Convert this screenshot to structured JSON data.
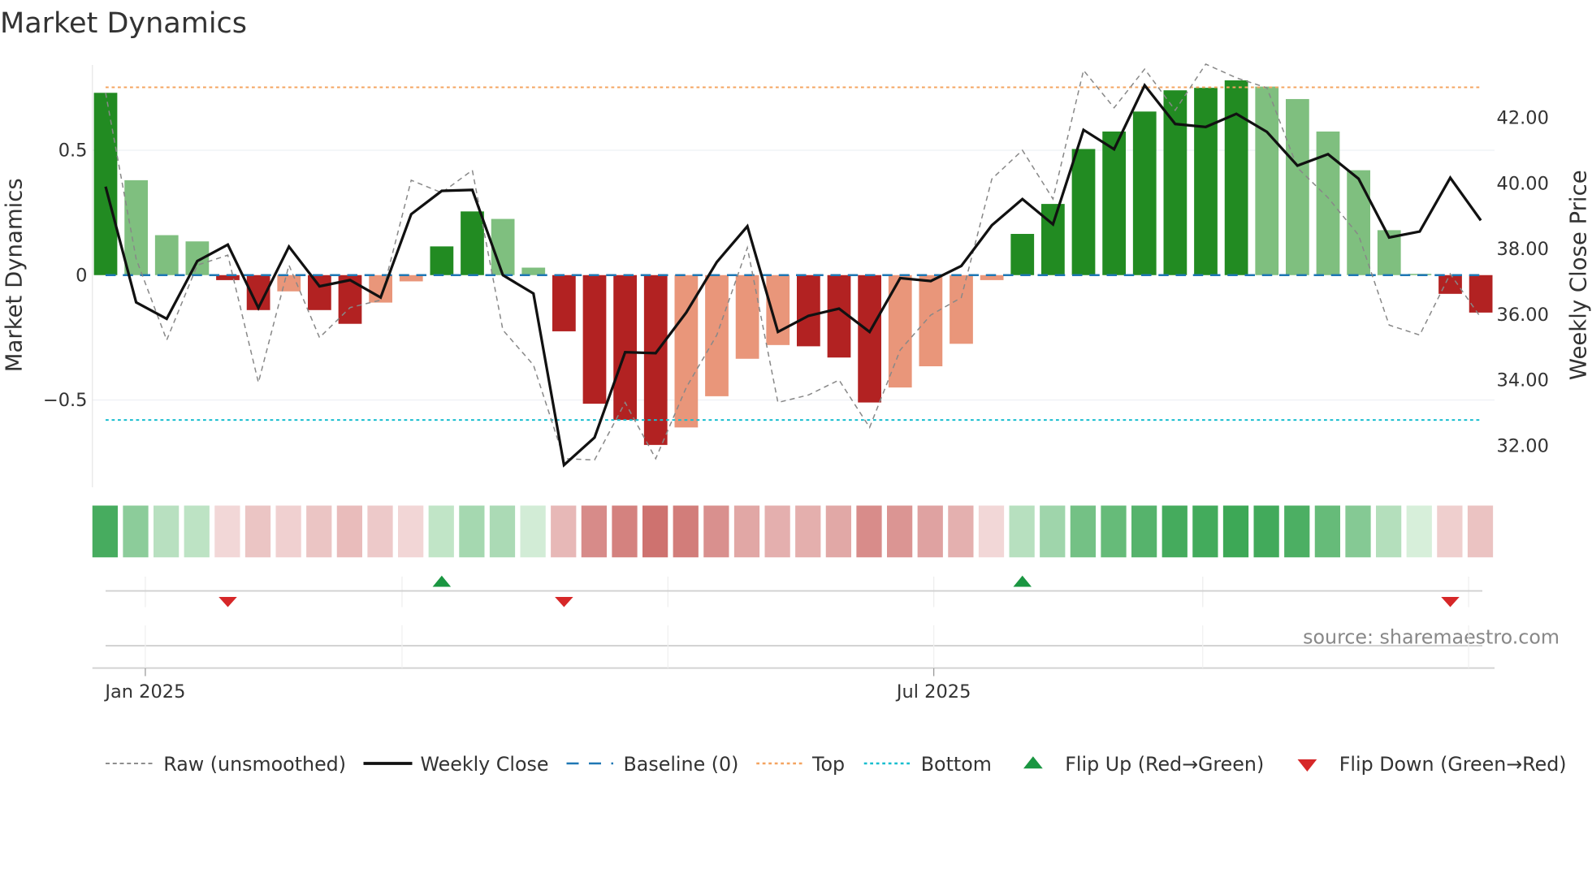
{
  "chart_data": {
    "type": "bar",
    "title": "Market Dynamics",
    "ylabel": "Market Dynamics",
    "y2label": "Weekly Close Price",
    "ylim": [
      -0.85,
      0.85
    ],
    "y2lim": [
      31.0,
      43.5
    ],
    "yticks": [
      "0.5",
      "0",
      "−0.5"
    ],
    "yticks_values": [
      0.5,
      0,
      -0.5
    ],
    "y2ticks": [
      "42.00",
      "40.00",
      "38.00",
      "36.00",
      "34.00",
      "32.00"
    ],
    "y2ticks_values": [
      42,
      40,
      38,
      36,
      34,
      32
    ],
    "xticks": [
      "Jan 2025",
      "Jul 2025"
    ],
    "xticks_index": [
      1.3,
      27.1
    ],
    "month_grid_index": [
      1.3,
      9.7,
      18.4,
      27.1,
      35.9,
      44.6
    ],
    "grid": true,
    "top_level": 0.752,
    "bottom_level": -0.58,
    "baseline": 0,
    "momentum": [
      0.73,
      0.38,
      0.16,
      0.135,
      -0.02,
      -0.14,
      -0.065,
      -0.14,
      -0.195,
      -0.11,
      -0.025,
      0.115,
      0.255,
      0.225,
      0.03,
      -0.225,
      -0.515,
      -0.58,
      -0.68,
      -0.61,
      -0.485,
      -0.335,
      -0.28,
      -0.285,
      -0.33,
      -0.51,
      -0.45,
      -0.365,
      -0.275,
      -0.02,
      0.165,
      0.285,
      0.505,
      0.575,
      0.655,
      0.74,
      0.75,
      0.78,
      0.755,
      0.705,
      0.575,
      0.42,
      0.18,
      0.005,
      -0.075,
      -0.15
    ],
    "strength": [
      "strong",
      "weak",
      "weak",
      "weak",
      "strong",
      "strong",
      "weak",
      "strong",
      "strong",
      "weak",
      "weak",
      "strong",
      "strong",
      "weak",
      "weak",
      "strong",
      "strong",
      "strong",
      "strong",
      "weak",
      "weak",
      "weak",
      "weak",
      "strong",
      "strong",
      "strong",
      "weak",
      "weak",
      "weak",
      "weak",
      "strong",
      "strong",
      "strong",
      "strong",
      "strong",
      "strong",
      "strong",
      "strong",
      "weak",
      "weak",
      "weak",
      "weak",
      "weak",
      "weak",
      "strong",
      "strong"
    ],
    "raw": [
      0.73,
      0.065,
      -0.26,
      0.04,
      0.08,
      -0.43,
      0.04,
      -0.25,
      -0.13,
      -0.1,
      0.38,
      0.33,
      0.42,
      -0.22,
      -0.36,
      -0.735,
      -0.74,
      -0.51,
      -0.735,
      -0.45,
      -0.24,
      0.11,
      -0.51,
      -0.48,
      -0.42,
      -0.61,
      -0.3,
      -0.16,
      -0.09,
      0.385,
      0.5,
      0.305,
      0.82,
      0.67,
      0.825,
      0.66,
      0.845,
      0.79,
      0.75,
      0.43,
      0.31,
      0.16,
      -0.2,
      -0.24,
      0.005,
      -0.17
    ],
    "weekly_close": [
      39.9,
      36.37,
      35.87,
      37.63,
      38.13,
      36.2,
      38.07,
      36.86,
      37.05,
      36.52,
      39.06,
      39.77,
      39.8,
      37.2,
      36.64,
      31.41,
      32.25,
      34.85,
      34.82,
      36.06,
      37.6,
      38.69,
      35.47,
      35.96,
      36.18,
      35.47,
      37.11,
      37.02,
      37.48,
      38.72,
      39.52,
      38.75,
      41.63,
      41.04,
      42.99,
      41.81,
      41.72,
      42.12,
      41.57,
      40.54,
      40.89,
      40.14,
      38.35,
      38.53,
      40.17,
      38.87
    ],
    "flip_up_index": [
      11,
      30
    ],
    "flip_down_index": [
      4,
      15,
      44
    ],
    "colors": {
      "strong_green": "#228b22",
      "weak_green": "#7fbf7f",
      "strong_red": "#b22222",
      "weak_red": "#e9967a",
      "baseline": "#1f77b4",
      "top": "#f4a460",
      "bottom": "#17becf",
      "close": "#111111",
      "raw": "#888888",
      "flip_up": "#1a9641",
      "flip_down": "#d62728"
    },
    "legend": [
      "Raw (unsmoothed)",
      "Weekly Close",
      "Baseline (0)",
      "Top",
      "Bottom",
      "Flip Up (Red→Green)",
      "Flip Down (Green→Red)"
    ],
    "legend_placement": "bottom"
  },
  "source": "source: sharemaestro.com"
}
